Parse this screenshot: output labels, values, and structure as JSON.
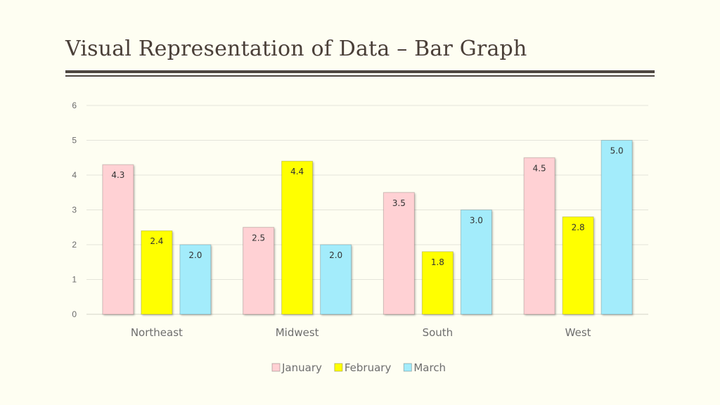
{
  "page": {
    "title": "Visual Representation of Data – Bar Graph"
  },
  "colors": {
    "January": "#ffd1d4",
    "February": "#ffff00",
    "March": "#a3ecfb",
    "text": "#4a3f38",
    "grid": "#e4e4da"
  },
  "chart_data": {
    "type": "bar",
    "categories": [
      "Northeast",
      "Midwest",
      "South",
      "West"
    ],
    "series": [
      {
        "name": "January",
        "values": [
          4.3,
          2.5,
          3.5,
          4.5
        ]
      },
      {
        "name": "February",
        "values": [
          2.4,
          4.4,
          1.8,
          2.8
        ]
      },
      {
        "name": "March",
        "values": [
          2.0,
          2.0,
          3.0,
          5.0
        ]
      }
    ],
    "ylim": [
      0,
      6
    ],
    "yticks": [
      0,
      1,
      2,
      3,
      4,
      5,
      6
    ],
    "grid": true,
    "legend": "bottom",
    "data_labels": true
  }
}
